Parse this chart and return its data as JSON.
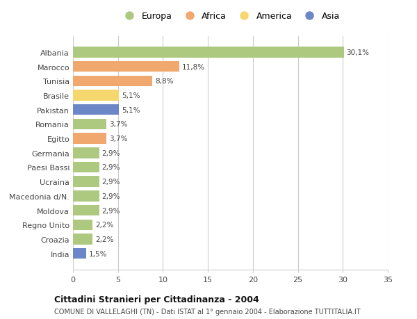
{
  "categories": [
    "Albania",
    "Marocco",
    "Tunisia",
    "Brasile",
    "Pakistan",
    "Romania",
    "Egitto",
    "Germania",
    "Paesi Bassi",
    "Ucraina",
    "Macedonia d/N.",
    "Moldova",
    "Regno Unito",
    "Croazia",
    "India"
  ],
  "values": [
    30.1,
    11.8,
    8.8,
    5.1,
    5.1,
    3.7,
    3.7,
    2.9,
    2.9,
    2.9,
    2.9,
    2.9,
    2.2,
    2.2,
    1.5
  ],
  "labels": [
    "30,1%",
    "11,8%",
    "8,8%",
    "5,1%",
    "5,1%",
    "3,7%",
    "3,7%",
    "2,9%",
    "2,9%",
    "2,9%",
    "2,9%",
    "2,9%",
    "2,2%",
    "2,2%",
    "1,5%"
  ],
  "continents": [
    "Europa",
    "Africa",
    "Africa",
    "America",
    "Asia",
    "Europa",
    "Africa",
    "Europa",
    "Europa",
    "Europa",
    "Europa",
    "Europa",
    "Europa",
    "Europa",
    "Asia"
  ],
  "colors": {
    "Europa": "#adc980",
    "Africa": "#f0a86e",
    "America": "#f5d76e",
    "Asia": "#6b87c7"
  },
  "legend_order": [
    "Europa",
    "Africa",
    "America",
    "Asia"
  ],
  "title": "Cittadini Stranieri per Cittadinanza - 2004",
  "subtitle": "COMUNE DI VALLELAGHI (TN) - Dati ISTAT al 1° gennaio 2004 - Elaborazione TUTTITALIA.IT",
  "xlim": [
    0,
    35
  ],
  "xticks": [
    0,
    5,
    10,
    15,
    20,
    25,
    30,
    35
  ],
  "background_color": "#ffffff",
  "grid_color": "#cccccc"
}
